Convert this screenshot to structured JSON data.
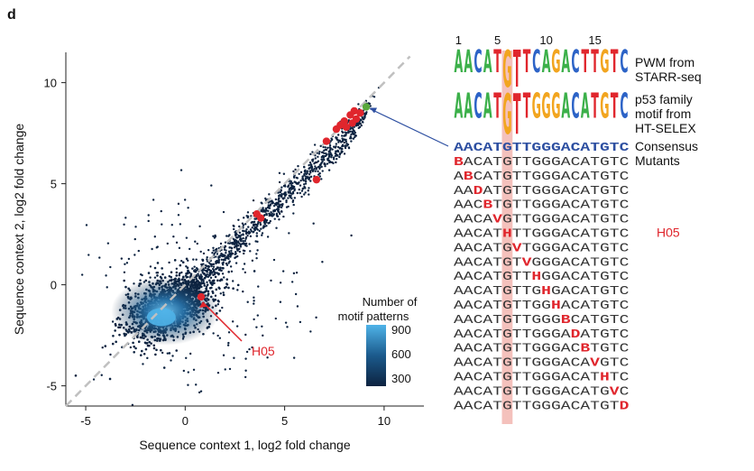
{
  "panel_label": "d",
  "colors": {
    "scatter_dark": "#0d2340",
    "scatter_mid": "#1b5a8c",
    "scatter_light": "#4fb3e8",
    "highlight_red": "#e0262d",
    "consensus_green": "#5aa83d",
    "consensus_blue": "#2d4fa1",
    "shade": "#f4c1bc",
    "diagonal": "#c0c0c0"
  },
  "chart_data": {
    "type": "scatter",
    "xlabel": "Sequence context 1, log2 fold change",
    "ylabel": "Sequence context 2, log2 fold change",
    "xlim": [
      -6,
      12
    ],
    "ylim": [
      -6,
      11.5
    ],
    "xticks": [
      "-5",
      "0",
      "5",
      "10"
    ],
    "yticks": [
      "-5",
      "0",
      "5",
      "10"
    ],
    "diagonal": "y = x dashed grey",
    "colorbar": {
      "title_line1": "Number of",
      "title_line2": "motif patterns",
      "ticks": [
        "900",
        "600",
        "300"
      ]
    },
    "highlight_points": [
      {
        "x": 0.8,
        "y": -0.6
      },
      {
        "x": 3.6,
        "y": 3.5
      },
      {
        "x": 3.8,
        "y": 3.3
      },
      {
        "x": 6.6,
        "y": 5.2
      },
      {
        "x": 7.1,
        "y": 7.1
      },
      {
        "x": 7.6,
        "y": 7.7
      },
      {
        "x": 7.8,
        "y": 7.9
      },
      {
        "x": 8.0,
        "y": 8.1
      },
      {
        "x": 8.1,
        "y": 7.8
      },
      {
        "x": 8.3,
        "y": 8.4
      },
      {
        "x": 8.4,
        "y": 8.0
      },
      {
        "x": 8.5,
        "y": 8.6
      },
      {
        "x": 8.6,
        "y": 8.2
      },
      {
        "x": 8.8,
        "y": 8.5
      }
    ],
    "consensus_point": {
      "x": 9.1,
      "y": 8.8
    },
    "annotation": "H05"
  },
  "motif_panel": {
    "positions": [
      "1",
      "5",
      "10",
      "15"
    ],
    "logo1_label_line1": "PWM from",
    "logo1_label_line2": "STARR-seq",
    "logo2_label_line1": "p53 family",
    "logo2_label_line2": "motif from",
    "logo2_label_line3": "HT-SELEX",
    "logo1_letters": [
      "A",
      "A",
      "C",
      "A",
      "T",
      "G",
      "T",
      "T",
      "C",
      "A",
      "G",
      "A",
      "C",
      "T",
      "T",
      "G",
      "T",
      "C"
    ],
    "logo2_letters": [
      "A",
      "A",
      "C",
      "A",
      "T",
      "G",
      "T",
      "T",
      "G",
      "G",
      "G",
      "A",
      "C",
      "A",
      "T",
      "G",
      "T",
      "C"
    ],
    "consensus_label": "Consensus",
    "mutants_label": "Mutants",
    "consensus": "AACATGTTGGGACATGTC",
    "mutants": [
      {
        "seq": "BACATGTTGGGACATGTC",
        "pos": 0
      },
      {
        "seq": "ABCATGTTGGGACATGTC",
        "pos": 1
      },
      {
        "seq": "AADATGTTGGGACATGTC",
        "pos": 2
      },
      {
        "seq": "AACBTGTTGGGACATGTC",
        "pos": 3
      },
      {
        "seq": "AACAVGTTGGGACATGTC",
        "pos": 4
      },
      {
        "seq": "AACATHTTGGGACATGTC",
        "pos": 5,
        "label": "H05"
      },
      {
        "seq": "AACATGVTGGGACATGTC",
        "pos": 6
      },
      {
        "seq": "AACATGTVGGGACATGTC",
        "pos": 7
      },
      {
        "seq": "AACATGTTHGGACATGTC",
        "pos": 8
      },
      {
        "seq": "AACATGTTGHGACATGTC",
        "pos": 9
      },
      {
        "seq": "AACATGTTGGHACATGTC",
        "pos": 10
      },
      {
        "seq": "AACATGTTGGGBCATGTC",
        "pos": 11
      },
      {
        "seq": "AACATGTTGGGADATGTC",
        "pos": 12
      },
      {
        "seq": "AACATGTTGGGACBTGTC",
        "pos": 13
      },
      {
        "seq": "AACATGTTGGGACAVGTC",
        "pos": 14
      },
      {
        "seq": "AACATGTTGGGACATHTC",
        "pos": 15
      },
      {
        "seq": "AACATGTTGGGACATGVC",
        "pos": 16
      },
      {
        "seq": "AACATGTTGGGACATGTD",
        "pos": 17
      }
    ]
  }
}
